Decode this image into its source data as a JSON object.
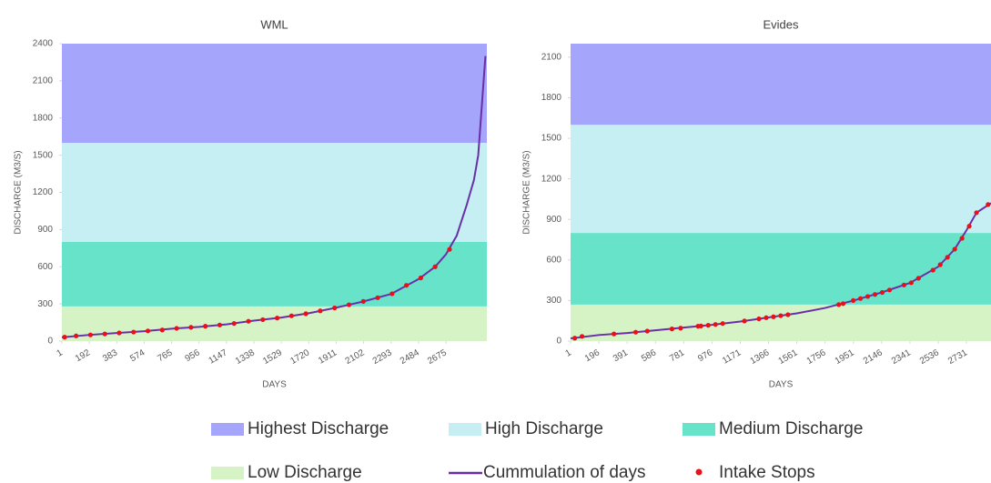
{
  "chart_data": [
    {
      "type": "line",
      "title": "WML",
      "xlabel": "DAYS",
      "ylabel": "DISCHARGE (M3/S)",
      "xlim": [
        1,
        2960
      ],
      "xticks": [
        1,
        192,
        383,
        574,
        765,
        956,
        1147,
        1338,
        1529,
        1720,
        1911,
        2102,
        2293,
        2484,
        2675
      ],
      "ylim": [
        0,
        2400
      ],
      "yticks": [
        0,
        300,
        600,
        900,
        1200,
        1500,
        1800,
        2100,
        2400
      ],
      "bands": [
        {
          "name": "Low Discharge",
          "color": "#d6f3c6",
          "from": 0,
          "to": 280
        },
        {
          "name": "Medium Discharge",
          "color": "#66e3c8",
          "from": 280,
          "to": 800
        },
        {
          "name": "High Discharge",
          "color": "#c5eff2",
          "from": 800,
          "to": 1600
        },
        {
          "name": "Highest Discharge",
          "color": "#a5a5fb",
          "from": 1600,
          "to": 2400
        }
      ],
      "series": [
        {
          "name": "Cummulation of days",
          "kind": "line",
          "color": "#6a2fa8",
          "x": [
            1,
            192,
            383,
            574,
            765,
            956,
            1147,
            1338,
            1529,
            1720,
            1911,
            2102,
            2293,
            2484,
            2600,
            2675,
            2750,
            2820,
            2870,
            2900,
            2950
          ],
          "values": [
            30,
            50,
            65,
            80,
            100,
            115,
            135,
            165,
            190,
            225,
            270,
            320,
            380,
            500,
            600,
            700,
            850,
            1100,
            1300,
            1500,
            2300
          ]
        },
        {
          "name": "Intake Stops",
          "kind": "scatter",
          "color": "#e8101a",
          "x": [
            20,
            100,
            200,
            300,
            400,
            500,
            600,
            700,
            800,
            900,
            1000,
            1100,
            1200,
            1300,
            1400,
            1500,
            1600,
            1700,
            1800,
            1900,
            2000,
            2100,
            2200,
            2300,
            2400,
            2500,
            2600,
            2700
          ],
          "values": [
            32,
            42,
            50,
            58,
            66,
            73,
            82,
            90,
            103,
            111,
            120,
            130,
            142,
            160,
            173,
            186,
            204,
            221,
            244,
            268,
            293,
            320,
            350,
            382,
            450,
            510,
            600,
            740
          ]
        }
      ]
    },
    {
      "type": "line",
      "title": "Evides",
      "xlabel": "DAYS",
      "ylabel": "DISCHARGE (M3/S)",
      "xlim": [
        1,
        2900
      ],
      "xticks": [
        1,
        196,
        391,
        586,
        781,
        976,
        1171,
        1366,
        1561,
        1756,
        1951,
        2146,
        2341,
        2536,
        2731
      ],
      "ylim": [
        0,
        2200
      ],
      "yticks": [
        0,
        300,
        600,
        900,
        1200,
        1500,
        1800,
        2100
      ],
      "bands": [
        {
          "name": "Low Discharge",
          "color": "#d6f3c6",
          "from": 0,
          "to": 270
        },
        {
          "name": "Medium Discharge",
          "color": "#66e3c8",
          "from": 270,
          "to": 800
        },
        {
          "name": "High Discharge",
          "color": "#c5eff2",
          "from": 800,
          "to": 1600
        },
        {
          "name": "Highest Discharge",
          "color": "#a5a5fb",
          "from": 1600,
          "to": 2200
        }
      ],
      "series": [
        {
          "name": "Cummulation of days",
          "kind": "line",
          "color": "#6a2fa8",
          "x": [
            1,
            196,
            391,
            586,
            781,
            976,
            1171,
            1366,
            1561,
            1756,
            1951,
            2146,
            2341,
            2536,
            2650,
            2731,
            2800,
            2900
          ],
          "values": [
            20,
            45,
            60,
            80,
            100,
            120,
            145,
            175,
            205,
            245,
            300,
            360,
            430,
            550,
            680,
            820,
            950,
            1020
          ]
        },
        {
          "name": "Intake Stops",
          "kind": "scatter",
          "color": "#e8101a",
          "x": [
            30,
            80,
            300,
            450,
            530,
            700,
            760,
            880,
            900,
            950,
            1000,
            1050,
            1200,
            1300,
            1350,
            1400,
            1450,
            1500,
            1850,
            1880,
            1950,
            2000,
            2050,
            2100,
            2150,
            2200,
            2300,
            2350,
            2400,
            2500,
            2550,
            2600,
            2650,
            2700,
            2750,
            2800,
            2880
          ],
          "values": [
            22,
            35,
            53,
            66,
            74,
            90,
            96,
            110,
            112,
            117,
            123,
            130,
            149,
            165,
            173,
            180,
            188,
            195,
            270,
            277,
            300,
            315,
            330,
            345,
            360,
            378,
            415,
            432,
            465,
            525,
            565,
            620,
            680,
            760,
            850,
            950,
            1010
          ]
        }
      ]
    }
  ]
}
